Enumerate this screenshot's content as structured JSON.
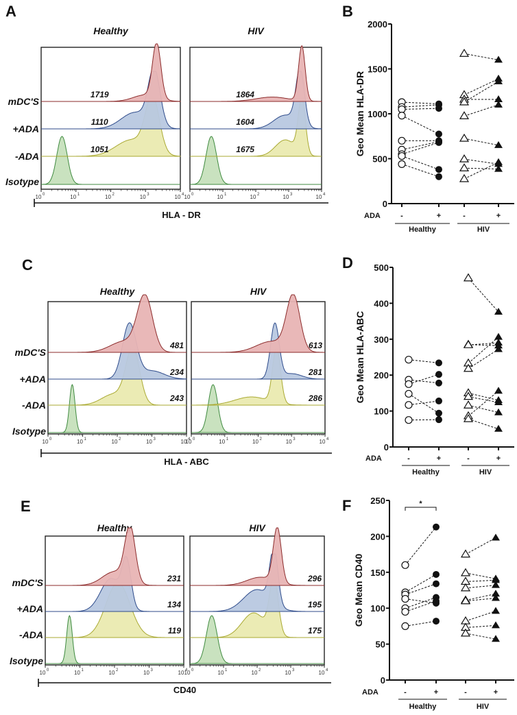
{
  "figure": {
    "row_labels": [
      "mDC'S",
      "+ADA",
      "-ADA",
      "Isotype"
    ],
    "colors": {
      "mdc": "#e8b4b4",
      "mdc_line": "#8b2a2a",
      "plus_ada": "#b8c8e0",
      "plus_ada_line": "#2d4a8a",
      "minus_ada": "#eaeab0",
      "minus_ada_line": "#a8a830",
      "isotype": "#c6e0bc",
      "isotype_line": "#3f8a3f"
    }
  },
  "chart_data": [
    {
      "panel": "A",
      "type": "histogram",
      "xlabel": "HLA - DR",
      "x_scale": "log",
      "xlim": [
        1,
        10000
      ],
      "x_ticks": [
        "10^0",
        "10^1",
        "10^2",
        "10^3",
        "10^4"
      ],
      "conditions": [
        {
          "name": "Healthy",
          "values": {
            "mDC'S": 1719,
            "+ADA": 1110,
            "-ADA": 1051
          }
        },
        {
          "name": "HIV",
          "values": {
            "mDC'S": 1864,
            "+ADA": 1604,
            "-ADA": 1675
          }
        }
      ]
    },
    {
      "panel": "B",
      "type": "scatter",
      "ylabel": "Geo Mean HLA-DR",
      "ylim": [
        0,
        2000
      ],
      "y_ticks": [
        0,
        500,
        1000,
        1500,
        2000
      ],
      "x_label": "ADA",
      "categories": [
        "-",
        "+",
        "-",
        "+"
      ],
      "groups": [
        "Healthy",
        "HIV"
      ],
      "pairs": {
        "Healthy": [
          [
            1130,
            1110
          ],
          [
            1075,
            1100
          ],
          [
            1050,
            1060
          ],
          [
            980,
            775
          ],
          [
            700,
            700
          ],
          [
            600,
            690
          ],
          [
            550,
            680
          ],
          [
            530,
            380
          ],
          [
            440,
            300
          ]
        ],
        "HIV": [
          [
            1670,
            1600
          ],
          [
            1210,
            1390
          ],
          [
            1160,
            1160
          ],
          [
            1130,
            1360
          ],
          [
            975,
            1100
          ],
          [
            725,
            650
          ],
          [
            495,
            440
          ],
          [
            395,
            385
          ],
          [
            275,
            460
          ]
        ]
      },
      "significance": []
    },
    {
      "panel": "C",
      "type": "histogram",
      "xlabel": "HLA - ABC",
      "x_scale": "log",
      "xlim": [
        1,
        10000
      ],
      "x_ticks": [
        "10^0",
        "10^1",
        "10^2",
        "10^3",
        "10^4"
      ],
      "conditions": [
        {
          "name": "Healthy",
          "values": {
            "mDC'S": 481,
            "+ADA": 234,
            "-ADA": 243
          }
        },
        {
          "name": "HIV",
          "values": {
            "mDC'S": 613,
            "+ADA": 281,
            "-ADA": 286
          }
        }
      ]
    },
    {
      "panel": "D",
      "type": "scatter",
      "ylabel": "Geo Mean HLA-ABC",
      "ylim": [
        0,
        500
      ],
      "y_ticks": [
        0,
        100,
        200,
        300,
        400,
        500
      ],
      "x_label": "ADA",
      "categories": [
        "-",
        "+",
        "-",
        "+"
      ],
      "groups": [
        "Healthy",
        "HIV"
      ],
      "pairs": {
        "Healthy": [
          [
            243,
            234
          ],
          [
            187,
            178
          ],
          [
            175,
            202
          ],
          [
            148,
            94
          ],
          [
            117,
            128
          ],
          [
            75,
            76
          ]
        ],
        "HIV": [
          [
            470,
            376
          ],
          [
            285,
            282
          ],
          [
            284,
            290
          ],
          [
            233,
            306
          ],
          [
            218,
            272
          ],
          [
            150,
            130
          ],
          [
            140,
            124
          ],
          [
            116,
            96
          ],
          [
            86,
            156
          ],
          [
            78,
            50
          ]
        ]
      },
      "significance": []
    },
    {
      "panel": "E",
      "type": "histogram",
      "xlabel": "CD40",
      "x_scale": "log",
      "xlim": [
        1,
        10000
      ],
      "x_ticks": [
        "10^0",
        "10^1",
        "10^2",
        "10^3",
        "10^4"
      ],
      "conditions": [
        {
          "name": "Healthy",
          "values": {
            "mDC'S": 231,
            "+ADA": 134,
            "-ADA": 119
          }
        },
        {
          "name": "HIV",
          "values": {
            "mDC'S": 296,
            "+ADA": 195,
            "-ADA": 175
          }
        }
      ]
    },
    {
      "panel": "F",
      "type": "scatter",
      "ylabel": "Geo Mean CD40",
      "ylim": [
        0,
        250
      ],
      "y_ticks": [
        0,
        50,
        100,
        150,
        200,
        250
      ],
      "x_label": "ADA",
      "categories": [
        "-",
        "+",
        "-",
        "+"
      ],
      "groups": [
        "Healthy",
        "HIV"
      ],
      "pairs": {
        "Healthy": [
          [
            160,
            213
          ],
          [
            122,
            147
          ],
          [
            119,
            134
          ],
          [
            113,
            107
          ],
          [
            100,
            115
          ],
          [
            95,
            110
          ],
          [
            75,
            82
          ]
        ],
        "HIV": [
          [
            175,
            198
          ],
          [
            149,
            141
          ],
          [
            137,
            139
          ],
          [
            128,
            132
          ],
          [
            111,
            120
          ],
          [
            110,
            114
          ],
          [
            82,
            96
          ],
          [
            73,
            76
          ],
          [
            65,
            57
          ]
        ]
      },
      "significance": [
        {
          "group": "Healthy",
          "label": "*"
        }
      ]
    }
  ]
}
